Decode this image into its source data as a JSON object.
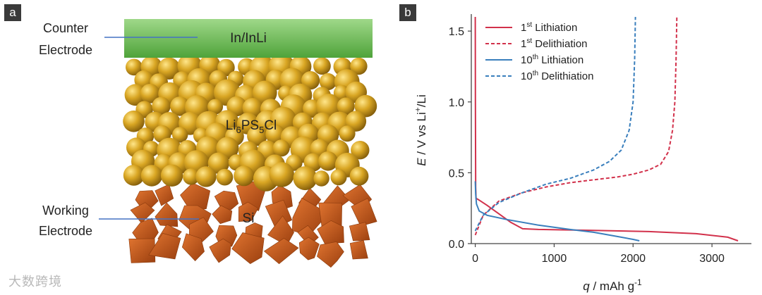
{
  "panel_a": {
    "label": "a",
    "counter_electrode": {
      "line1": "Counter",
      "line2": "Electrode"
    },
    "working_electrode": {
      "line1": "Working",
      "line2": "Electrode"
    },
    "layer_top": "In/InLi",
    "electrolyte": {
      "base": "Li",
      "sub1": "6",
      "mid": "PS",
      "sub2": "5",
      "end": "Cl"
    },
    "layer_bottom": "Si",
    "colors": {
      "top_layer": "#74c25c",
      "electrolyte": "#d6a21e",
      "silicon": "#c2561a",
      "leader": "#4472c4"
    }
  },
  "panel_b": {
    "label": "b"
  },
  "watermark": "大数跨境",
  "chart_data": {
    "type": "line",
    "title": "",
    "xlabel": {
      "var": "q",
      "unit": " / mAh g",
      "sup": "-1"
    },
    "ylabel": {
      "var": "E",
      "mid": " / V vs Li",
      "sup": "+",
      "end": "/Li"
    },
    "xlim": [
      -50,
      3500
    ],
    "ylim": [
      0,
      1.62
    ],
    "xticks": [
      0,
      1000,
      2000,
      3000
    ],
    "xtick_labels": [
      "0",
      "1000",
      "2000",
      "3000"
    ],
    "yticks": [
      0.0,
      0.5,
      1.0,
      1.5
    ],
    "ytick_labels": [
      "0.0",
      "0.5",
      "1.0",
      "1.5"
    ],
    "legend_position": "top-left",
    "series": [
      {
        "name": "1st Lithiation",
        "base": "1",
        "sup": "st",
        "text": " Lithiation",
        "color": "#d2314b",
        "dash": "solid",
        "points": [
          [
            0,
            1.6
          ],
          [
            2,
            1.0
          ],
          [
            5,
            0.4
          ],
          [
            10,
            0.32
          ],
          [
            40,
            0.31
          ],
          [
            150,
            0.27
          ],
          [
            300,
            0.21
          ],
          [
            450,
            0.15
          ],
          [
            600,
            0.105
          ],
          [
            800,
            0.1
          ],
          [
            1500,
            0.093
          ],
          [
            2200,
            0.085
          ],
          [
            2800,
            0.07
          ],
          [
            3200,
            0.045
          ],
          [
            3330,
            0.02
          ]
        ]
      },
      {
        "name": "1st Delithiation",
        "base": "1",
        "sup": "st",
        "text": " Delithiation",
        "color": "#d2314b",
        "dash": "dashed",
        "points": [
          [
            0,
            0.06
          ],
          [
            100,
            0.2
          ],
          [
            300,
            0.3
          ],
          [
            600,
            0.36
          ],
          [
            900,
            0.4
          ],
          [
            1200,
            0.43
          ],
          [
            1500,
            0.45
          ],
          [
            1800,
            0.47
          ],
          [
            2000,
            0.49
          ],
          [
            2200,
            0.52
          ],
          [
            2350,
            0.56
          ],
          [
            2450,
            0.65
          ],
          [
            2500,
            0.8
          ],
          [
            2530,
            1.0
          ],
          [
            2545,
            1.3
          ],
          [
            2555,
            1.6
          ]
        ]
      },
      {
        "name": "10th Lithiation",
        "base": "10",
        "sup": "th",
        "text": " Lithiation",
        "color": "#3a7fbd",
        "dash": "solid",
        "points": [
          [
            0,
            0.44
          ],
          [
            5,
            0.35
          ],
          [
            15,
            0.28
          ],
          [
            50,
            0.23
          ],
          [
            150,
            0.2
          ],
          [
            400,
            0.17
          ],
          [
            800,
            0.13
          ],
          [
            1200,
            0.1
          ],
          [
            1500,
            0.08
          ],
          [
            1800,
            0.05
          ],
          [
            2000,
            0.03
          ],
          [
            2080,
            0.02
          ]
        ]
      },
      {
        "name": "10th Delithiation",
        "base": "10",
        "sup": "th",
        "text": " Delithiation",
        "color": "#3a7fbd",
        "dash": "dashed",
        "points": [
          [
            0,
            0.09
          ],
          [
            100,
            0.2
          ],
          [
            300,
            0.29
          ],
          [
            600,
            0.36
          ],
          [
            900,
            0.42
          ],
          [
            1200,
            0.46
          ],
          [
            1500,
            0.52
          ],
          [
            1700,
            0.58
          ],
          [
            1850,
            0.66
          ],
          [
            1950,
            0.8
          ],
          [
            2000,
            1.0
          ],
          [
            2020,
            1.3
          ],
          [
            2030,
            1.6
          ]
        ]
      }
    ]
  }
}
